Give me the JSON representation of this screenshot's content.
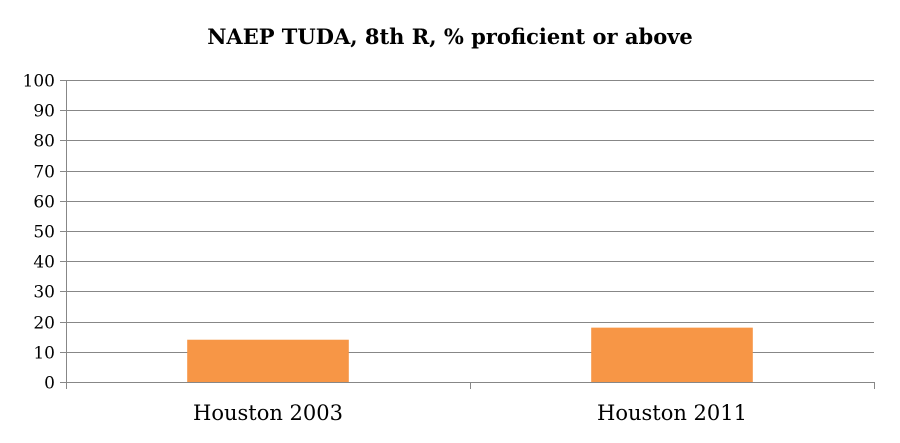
{
  "chart_data": {
    "type": "bar",
    "title": "NAEP TUDA, 8th R, % proficient or above",
    "xlabel": "",
    "ylabel": "",
    "categories": [
      "Houston 2003",
      "Houston 2011"
    ],
    "series": [
      {
        "values": [
          14,
          18
        ],
        "color": "#F79646"
      }
    ],
    "ylim": [
      0,
      100
    ],
    "yticks": [
      0,
      10,
      20,
      30,
      40,
      50,
      60,
      70,
      80,
      90,
      100
    ],
    "grid": true,
    "legend": "none",
    "colors": {
      "gridline": "#878787",
      "axis": "#878787",
      "bar": "#F79646"
    }
  }
}
